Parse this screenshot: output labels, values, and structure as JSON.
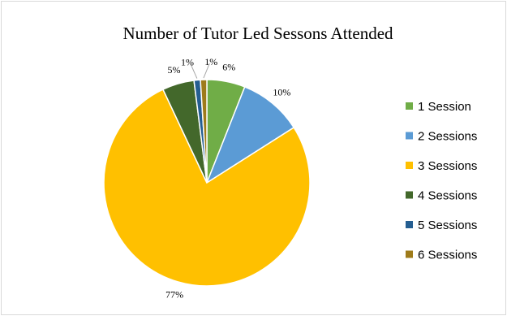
{
  "chart_data": {
    "type": "pie",
    "title": "Number of Tutor Led Sessons Attended",
    "categories": [
      "1 Session",
      "2 Sessions",
      "3 Sessions",
      "4 Sessions",
      "5 Sessions",
      "6 Sessions"
    ],
    "values": [
      6,
      10,
      77,
      5,
      1,
      1
    ],
    "labels": [
      "6%",
      "10%",
      "77%",
      "5%",
      "1%",
      "1%"
    ],
    "colors": [
      "#70ad47",
      "#5b9bd5",
      "#ffc000",
      "#43682b",
      "#255e91",
      "#9e7b1a"
    ],
    "legend_position": "right",
    "start_angle_deg": 0,
    "direction": "clockwise"
  }
}
